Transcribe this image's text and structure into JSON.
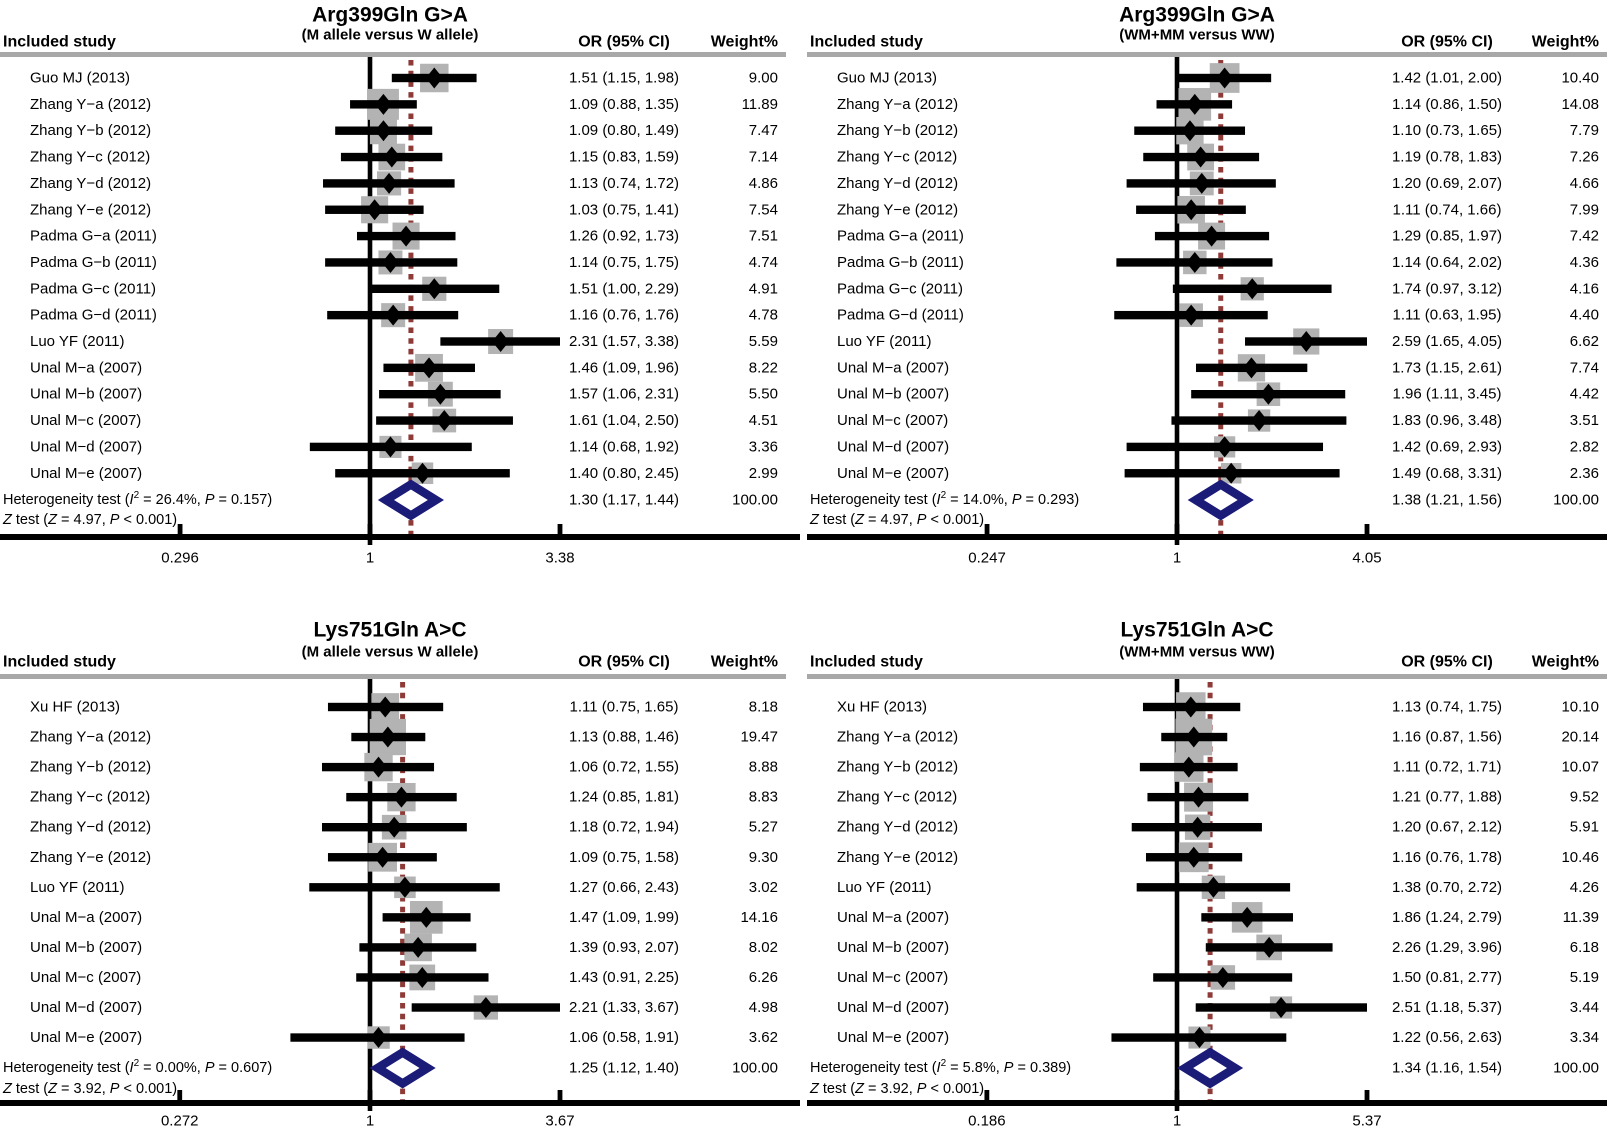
{
  "figure": {
    "columns": {
      "study": "Included study",
      "or": "OR (95% CI)",
      "weight": "Weight%"
    },
    "stats_labels": {
      "het": "Heterogeneity test",
      "test": "test",
      "i2_sym": "I",
      "p_sym": "P",
      "z_sym": "Z"
    },
    "colors": {
      "bar": "#000000",
      "weight_box": "#b3b3b3",
      "header_rule": "#a8a8a8",
      "pooled_line": "#8e3a37",
      "summary_diamond": "#1b1b78",
      "text": "#000000"
    }
  },
  "chart_data": [
    {
      "type": "forest",
      "title": "Arg399Gln G>A",
      "subtitle": "(M allele versus W allele)",
      "x_scale": "log",
      "axis_ticks": [
        "0.296",
        "1",
        "3.38"
      ],
      "studies": [
        {
          "label": "Guo MJ (2013)",
          "or": 1.51,
          "ci_low": 1.15,
          "ci_high": 1.98,
          "or_ci_text": "1.51 (1.15, 1.98)",
          "weight_pct": 9.0,
          "weight_text": "9.00"
        },
        {
          "label": "Zhang Y−a (2012)",
          "or": 1.09,
          "ci_low": 0.88,
          "ci_high": 1.35,
          "or_ci_text": "1.09 (0.88, 1.35)",
          "weight_pct": 11.89,
          "weight_text": "11.89"
        },
        {
          "label": "Zhang Y−b (2012)",
          "or": 1.09,
          "ci_low": 0.8,
          "ci_high": 1.49,
          "or_ci_text": "1.09 (0.80, 1.49)",
          "weight_pct": 7.47,
          "weight_text": "7.47"
        },
        {
          "label": "Zhang Y−c (2012)",
          "or": 1.15,
          "ci_low": 0.83,
          "ci_high": 1.59,
          "or_ci_text": "1.15 (0.83, 1.59)",
          "weight_pct": 7.14,
          "weight_text": "7.14"
        },
        {
          "label": "Zhang Y−d (2012)",
          "or": 1.13,
          "ci_low": 0.74,
          "ci_high": 1.72,
          "or_ci_text": "1.13 (0.74, 1.72)",
          "weight_pct": 4.86,
          "weight_text": "4.86"
        },
        {
          "label": "Zhang Y−e (2012)",
          "or": 1.03,
          "ci_low": 0.75,
          "ci_high": 1.41,
          "or_ci_text": "1.03 (0.75, 1.41)",
          "weight_pct": 7.54,
          "weight_text": "7.54"
        },
        {
          "label": "Padma G−a (2011)",
          "or": 1.26,
          "ci_low": 0.92,
          "ci_high": 1.73,
          "or_ci_text": "1.26 (0.92, 1.73)",
          "weight_pct": 7.51,
          "weight_text": "7.51"
        },
        {
          "label": "Padma G−b (2011)",
          "or": 1.14,
          "ci_low": 0.75,
          "ci_high": 1.75,
          "or_ci_text": "1.14 (0.75, 1.75)",
          "weight_pct": 4.74,
          "weight_text": "4.74"
        },
        {
          "label": "Padma G−c (2011)",
          "or": 1.51,
          "ci_low": 1.0,
          "ci_high": 2.29,
          "or_ci_text": "1.51 (1.00, 2.29)",
          "weight_pct": 4.91,
          "weight_text": "4.91"
        },
        {
          "label": "Padma G−d (2011)",
          "or": 1.16,
          "ci_low": 0.76,
          "ci_high": 1.76,
          "or_ci_text": "1.16 (0.76, 1.76)",
          "weight_pct": 4.78,
          "weight_text": "4.78"
        },
        {
          "label": "Luo YF (2011)",
          "or": 2.31,
          "ci_low": 1.57,
          "ci_high": 3.38,
          "or_ci_text": "2.31 (1.57, 3.38)",
          "weight_pct": 5.59,
          "weight_text": "5.59"
        },
        {
          "label": "Unal M−a (2007)",
          "or": 1.46,
          "ci_low": 1.09,
          "ci_high": 1.96,
          "or_ci_text": "1.46 (1.09, 1.96)",
          "weight_pct": 8.22,
          "weight_text": "8.22"
        },
        {
          "label": "Unal M−b (2007)",
          "or": 1.57,
          "ci_low": 1.06,
          "ci_high": 2.31,
          "or_ci_text": "1.57 (1.06, 2.31)",
          "weight_pct": 5.5,
          "weight_text": "5.50"
        },
        {
          "label": "Unal M−c (2007)",
          "or": 1.61,
          "ci_low": 1.04,
          "ci_high": 2.5,
          "or_ci_text": "1.61 (1.04, 2.50)",
          "weight_pct": 4.51,
          "weight_text": "4.51"
        },
        {
          "label": "Unal M−d (2007)",
          "or": 1.14,
          "ci_low": 0.68,
          "ci_high": 1.92,
          "or_ci_text": "1.14 (0.68, 1.92)",
          "weight_pct": 3.36,
          "weight_text": "3.36"
        },
        {
          "label": "Unal M−e (2007)",
          "or": 1.4,
          "ci_low": 0.8,
          "ci_high": 2.45,
          "or_ci_text": "1.40 (0.80, 2.45)",
          "weight_pct": 2.99,
          "weight_text": "2.99"
        }
      ],
      "summary": {
        "or": 1.3,
        "ci_low": 1.17,
        "ci_high": 1.44,
        "or_ci_text": "1.30 (1.17, 1.44)",
        "weight_text": "100.00",
        "i2": "26.4%",
        "het_p": "0.157",
        "z": "4.97",
        "z_p": "< 0.001"
      }
    },
    {
      "type": "forest",
      "title": "Arg399Gln G>A",
      "subtitle": "(WM+MM versus WW)",
      "x_scale": "log",
      "axis_ticks": [
        "0.247",
        "1",
        "4.05"
      ],
      "studies": [
        {
          "label": "Guo MJ (2013)",
          "or": 1.42,
          "ci_low": 1.01,
          "ci_high": 2.0,
          "or_ci_text": "1.42 (1.01, 2.00)",
          "weight_pct": 10.4,
          "weight_text": "10.40"
        },
        {
          "label": "Zhang Y−a (2012)",
          "or": 1.14,
          "ci_low": 0.86,
          "ci_high": 1.5,
          "or_ci_text": "1.14 (0.86, 1.50)",
          "weight_pct": 14.08,
          "weight_text": "14.08"
        },
        {
          "label": "Zhang Y−b (2012)",
          "or": 1.1,
          "ci_low": 0.73,
          "ci_high": 1.65,
          "or_ci_text": "1.10 (0.73, 1.65)",
          "weight_pct": 7.79,
          "weight_text": "7.79"
        },
        {
          "label": "Zhang Y−c (2012)",
          "or": 1.19,
          "ci_low": 0.78,
          "ci_high": 1.83,
          "or_ci_text": "1.19 (0.78, 1.83)",
          "weight_pct": 7.26,
          "weight_text": "7.26"
        },
        {
          "label": "Zhang Y−d (2012)",
          "or": 1.2,
          "ci_low": 0.69,
          "ci_high": 2.07,
          "or_ci_text": "1.20 (0.69, 2.07)",
          "weight_pct": 4.66,
          "weight_text": "4.66"
        },
        {
          "label": "Zhang Y−e (2012)",
          "or": 1.11,
          "ci_low": 0.74,
          "ci_high": 1.66,
          "or_ci_text": "1.11 (0.74, 1.66)",
          "weight_pct": 7.99,
          "weight_text": "7.99"
        },
        {
          "label": "Padma G−a (2011)",
          "or": 1.29,
          "ci_low": 0.85,
          "ci_high": 1.97,
          "or_ci_text": "1.29 (0.85, 1.97)",
          "weight_pct": 7.42,
          "weight_text": "7.42"
        },
        {
          "label": "Padma G−b (2011)",
          "or": 1.14,
          "ci_low": 0.64,
          "ci_high": 2.02,
          "or_ci_text": "1.14 (0.64, 2.02)",
          "weight_pct": 4.36,
          "weight_text": "4.36"
        },
        {
          "label": "Padma G−c (2011)",
          "or": 1.74,
          "ci_low": 0.97,
          "ci_high": 3.12,
          "or_ci_text": "1.74 (0.97, 3.12)",
          "weight_pct": 4.16,
          "weight_text": "4.16"
        },
        {
          "label": "Padma G−d (2011)",
          "or": 1.11,
          "ci_low": 0.63,
          "ci_high": 1.95,
          "or_ci_text": "1.11 (0.63, 1.95)",
          "weight_pct": 4.4,
          "weight_text": "4.40"
        },
        {
          "label": "Luo YF (2011)",
          "or": 2.59,
          "ci_low": 1.65,
          "ci_high": 4.05,
          "or_ci_text": "2.59 (1.65, 4.05)",
          "weight_pct": 6.62,
          "weight_text": "6.62"
        },
        {
          "label": "Unal M−a (2007)",
          "or": 1.73,
          "ci_low": 1.15,
          "ci_high": 2.61,
          "or_ci_text": "1.73 (1.15, 2.61)",
          "weight_pct": 7.74,
          "weight_text": "7.74"
        },
        {
          "label": "Unal M−b (2007)",
          "or": 1.96,
          "ci_low": 1.11,
          "ci_high": 3.45,
          "or_ci_text": "1.96 (1.11, 3.45)",
          "weight_pct": 4.42,
          "weight_text": "4.42"
        },
        {
          "label": "Unal M−c (2007)",
          "or": 1.83,
          "ci_low": 0.96,
          "ci_high": 3.48,
          "or_ci_text": "1.83 (0.96, 3.48)",
          "weight_pct": 3.51,
          "weight_text": "3.51"
        },
        {
          "label": "Unal M−d (2007)",
          "or": 1.42,
          "ci_low": 0.69,
          "ci_high": 2.93,
          "or_ci_text": "1.42 (0.69, 2.93)",
          "weight_pct": 2.82,
          "weight_text": "2.82"
        },
        {
          "label": "Unal M−e (2007)",
          "or": 1.49,
          "ci_low": 0.68,
          "ci_high": 3.31,
          "or_ci_text": "1.49 (0.68, 3.31)",
          "weight_pct": 2.36,
          "weight_text": "2.36"
        }
      ],
      "summary": {
        "or": 1.38,
        "ci_low": 1.21,
        "ci_high": 1.56,
        "or_ci_text": "1.38 (1.21, 1.56)",
        "weight_text": "100.00",
        "i2": "14.0%",
        "het_p": "0.293",
        "z": "4.97",
        "z_p": "< 0.001"
      }
    },
    {
      "type": "forest",
      "title": "Lys751Gln A>C",
      "subtitle": "(M allele versus W allele)",
      "x_scale": "log",
      "axis_ticks": [
        "0.272",
        "1",
        "3.67"
      ],
      "studies": [
        {
          "label": "Xu HF (2013)",
          "or": 1.11,
          "ci_low": 0.75,
          "ci_high": 1.65,
          "or_ci_text": "1.11 (0.75, 1.65)",
          "weight_pct": 8.18,
          "weight_text": "8.18"
        },
        {
          "label": "Zhang Y−a (2012)",
          "or": 1.13,
          "ci_low": 0.88,
          "ci_high": 1.46,
          "or_ci_text": "1.13 (0.88, 1.46)",
          "weight_pct": 19.47,
          "weight_text": "19.47"
        },
        {
          "label": "Zhang Y−b (2012)",
          "or": 1.06,
          "ci_low": 0.72,
          "ci_high": 1.55,
          "or_ci_text": "1.06 (0.72, 1.55)",
          "weight_pct": 8.88,
          "weight_text": "8.88"
        },
        {
          "label": "Zhang Y−c (2012)",
          "or": 1.24,
          "ci_low": 0.85,
          "ci_high": 1.81,
          "or_ci_text": "1.24 (0.85, 1.81)",
          "weight_pct": 8.83,
          "weight_text": "8.83"
        },
        {
          "label": "Zhang Y−d (2012)",
          "or": 1.18,
          "ci_low": 0.72,
          "ci_high": 1.94,
          "or_ci_text": "1.18 (0.72, 1.94)",
          "weight_pct": 5.27,
          "weight_text": "5.27"
        },
        {
          "label": "Zhang Y−e (2012)",
          "or": 1.09,
          "ci_low": 0.75,
          "ci_high": 1.58,
          "or_ci_text": "1.09 (0.75, 1.58)",
          "weight_pct": 9.3,
          "weight_text": "9.30"
        },
        {
          "label": "Luo YF (2011)",
          "or": 1.27,
          "ci_low": 0.66,
          "ci_high": 2.43,
          "or_ci_text": "1.27 (0.66, 2.43)",
          "weight_pct": 3.02,
          "weight_text": "3.02"
        },
        {
          "label": "Unal M−a (2007)",
          "or": 1.47,
          "ci_low": 1.09,
          "ci_high": 1.99,
          "or_ci_text": "1.47 (1.09, 1.99)",
          "weight_pct": 14.16,
          "weight_text": "14.16"
        },
        {
          "label": "Unal M−b (2007)",
          "or": 1.39,
          "ci_low": 0.93,
          "ci_high": 2.07,
          "or_ci_text": "1.39 (0.93, 2.07)",
          "weight_pct": 8.02,
          "weight_text": "8.02"
        },
        {
          "label": "Unal M−c (2007)",
          "or": 1.43,
          "ci_low": 0.91,
          "ci_high": 2.25,
          "or_ci_text": "1.43 (0.91, 2.25)",
          "weight_pct": 6.26,
          "weight_text": "6.26"
        },
        {
          "label": "Unal M−d (2007)",
          "or": 2.21,
          "ci_low": 1.33,
          "ci_high": 3.67,
          "or_ci_text": "2.21 (1.33, 3.67)",
          "weight_pct": 4.98,
          "weight_text": "4.98"
        },
        {
          "label": "Unal M−e (2007)",
          "or": 1.06,
          "ci_low": 0.58,
          "ci_high": 1.91,
          "or_ci_text": "1.06 (0.58, 1.91)",
          "weight_pct": 3.62,
          "weight_text": "3.62"
        }
      ],
      "summary": {
        "or": 1.25,
        "ci_low": 1.12,
        "ci_high": 1.4,
        "or_ci_text": "1.25 (1.12, 1.40)",
        "weight_text": "100.00",
        "i2": "0.00%",
        "het_p": "0.607",
        "z": "3.92",
        "z_p": "< 0.001"
      }
    },
    {
      "type": "forest",
      "title": "Lys751Gln A>C",
      "subtitle": "(WM+MM versus WW)",
      "x_scale": "log",
      "axis_ticks": [
        "0.186",
        "1",
        "5.37"
      ],
      "studies": [
        {
          "label": "Xu HF (2013)",
          "or": 1.13,
          "ci_low": 0.74,
          "ci_high": 1.75,
          "or_ci_text": "1.13 (0.74, 1.75)",
          "weight_pct": 10.1,
          "weight_text": "10.10"
        },
        {
          "label": "Zhang Y−a (2012)",
          "or": 1.16,
          "ci_low": 0.87,
          "ci_high": 1.56,
          "or_ci_text": "1.16 (0.87, 1.56)",
          "weight_pct": 20.14,
          "weight_text": "20.14"
        },
        {
          "label": "Zhang Y−b (2012)",
          "or": 1.11,
          "ci_low": 0.72,
          "ci_high": 1.71,
          "or_ci_text": "1.11 (0.72, 1.71)",
          "weight_pct": 10.07,
          "weight_text": "10.07"
        },
        {
          "label": "Zhang Y−c (2012)",
          "or": 1.21,
          "ci_low": 0.77,
          "ci_high": 1.88,
          "or_ci_text": "1.21 (0.77, 1.88)",
          "weight_pct": 9.52,
          "weight_text": "9.52"
        },
        {
          "label": "Zhang Y−d (2012)",
          "or": 1.2,
          "ci_low": 0.67,
          "ci_high": 2.12,
          "or_ci_text": "1.20 (0.67, 2.12)",
          "weight_pct": 5.91,
          "weight_text": "5.91"
        },
        {
          "label": "Zhang Y−e (2012)",
          "or": 1.16,
          "ci_low": 0.76,
          "ci_high": 1.78,
          "or_ci_text": "1.16 (0.76, 1.78)",
          "weight_pct": 10.46,
          "weight_text": "10.46"
        },
        {
          "label": "Luo YF (2011)",
          "or": 1.38,
          "ci_low": 0.7,
          "ci_high": 2.72,
          "or_ci_text": "1.38 (0.70, 2.72)",
          "weight_pct": 4.26,
          "weight_text": "4.26"
        },
        {
          "label": "Unal M−a (2007)",
          "or": 1.86,
          "ci_low": 1.24,
          "ci_high": 2.79,
          "or_ci_text": "1.86 (1.24, 2.79)",
          "weight_pct": 11.39,
          "weight_text": "11.39"
        },
        {
          "label": "Unal M−b (2007)",
          "or": 2.26,
          "ci_low": 1.29,
          "ci_high": 3.96,
          "or_ci_text": "2.26 (1.29, 3.96)",
          "weight_pct": 6.18,
          "weight_text": "6.18"
        },
        {
          "label": "Unal M−c (2007)",
          "or": 1.5,
          "ci_low": 0.81,
          "ci_high": 2.77,
          "or_ci_text": "1.50 (0.81, 2.77)",
          "weight_pct": 5.19,
          "weight_text": "5.19"
        },
        {
          "label": "Unal M−d (2007)",
          "or": 2.51,
          "ci_low": 1.18,
          "ci_high": 5.37,
          "or_ci_text": "2.51 (1.18, 5.37)",
          "weight_pct": 3.44,
          "weight_text": "3.44"
        },
        {
          "label": "Unal M−e (2007)",
          "or": 1.22,
          "ci_low": 0.56,
          "ci_high": 2.63,
          "or_ci_text": "1.22 (0.56, 2.63)",
          "weight_pct": 3.34,
          "weight_text": "3.34"
        }
      ],
      "summary": {
        "or": 1.34,
        "ci_low": 1.16,
        "ci_high": 1.54,
        "or_ci_text": "1.34 (1.16, 1.54)",
        "weight_text": "100.00",
        "i2": "5.8%",
        "het_p": "0.389",
        "z": "3.92",
        "z_p": "< 0.001"
      }
    }
  ]
}
